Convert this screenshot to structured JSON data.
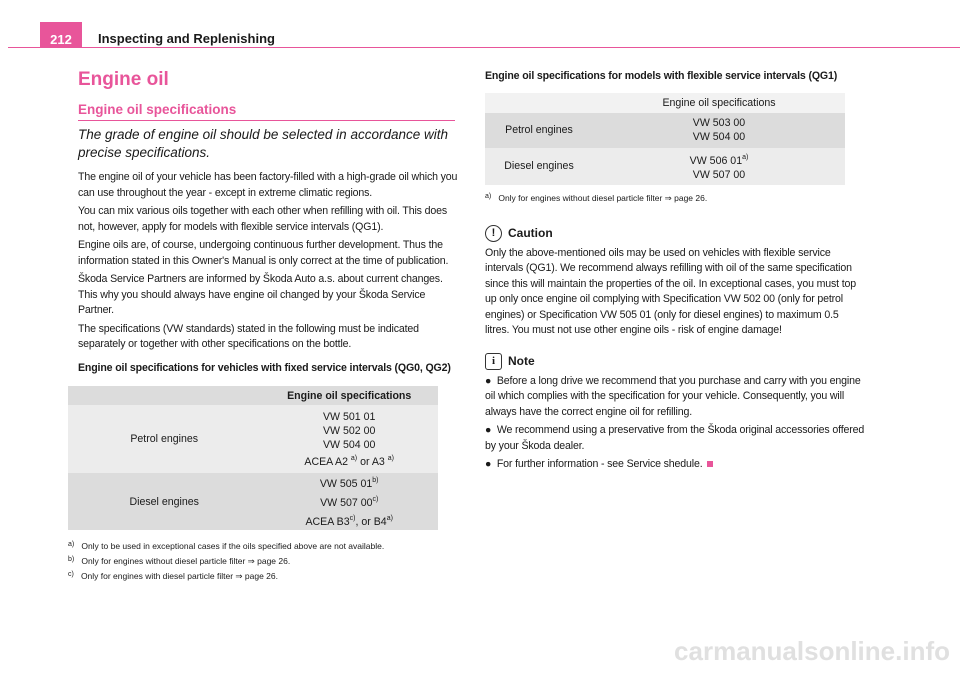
{
  "header": {
    "page_number": "212",
    "section": "Inspecting and Replenishing"
  },
  "title": "Engine oil",
  "subtitle": "Engine oil specifications",
  "lead": "The grade of engine oil should be selected in accordance with precise specifications.",
  "paragraphs": [
    "The engine oil of your vehicle has been factory-filled with a high-grade oil which you can use throughout the year - except in extreme climatic regions.",
    "You can mix various oils together with each other when refilling with oil. This does not, however, apply for models with flexible service intervals (QG1).",
    "Engine oils are, of course, undergoing continuous further development. Thus the information stated in this Owner's Manual is only correct at the time of publication.",
    "Škoda Service Partners are informed by Škoda Auto a.s. about current changes. This why you should always have engine oil changed by your Škoda Service Partner.",
    "The specifications (VW standards) stated in the following must be indicated separately or together with other specifications on the bottle."
  ],
  "table1": {
    "caption": "Engine oil specifications for vehicles with fixed service intervals (QG0, QG2)",
    "header": "Engine oil specifications",
    "petrol": {
      "label": "Petrol engines",
      "l1": "VW 501 01",
      "l2": "VW 502 00",
      "l3": "VW 504 00",
      "l4a": "ACEA A2 ",
      "l4s1": "a)",
      "l4b": " or A3 ",
      "l4s2": "a)"
    },
    "diesel": {
      "label": "Diesel engines",
      "l1": "VW 505 01",
      "l1s": "b)",
      "l2": "VW 507 00",
      "l2s": "c)",
      "l3a": "ACEA B3",
      "l3s1": "c)",
      "l3b": ", or B4",
      "l3s2": "a)"
    },
    "footnotes": [
      {
        "mark": "a)",
        "text": "Only to be used in exceptional cases if the oils specified above are not available."
      },
      {
        "mark": "b)",
        "text": "Only for engines without diesel particle filter ⇒ page 26."
      },
      {
        "mark": "c)",
        "text": "Only for engines with diesel particle filter ⇒ page 26."
      }
    ]
  },
  "table2": {
    "caption": "Engine oil specifications for models with flexible service intervals (QG1)",
    "header": "Engine oil specifications",
    "petrol": {
      "label": "Petrol engines",
      "l1": "VW 503 00",
      "l2": "VW 504 00"
    },
    "diesel": {
      "label": "Diesel engines",
      "l1": "VW 506 01",
      "l1s": "a)",
      "l2": "VW 507 00"
    },
    "footnote": {
      "mark": "a)",
      "text": "Only for engines without diesel particle filter ⇒ page 26."
    }
  },
  "caution": {
    "title": "Caution",
    "text": "Only the above-mentioned oils may be used on vehicles with flexible service intervals (QG1). We recommend always refilling with oil of the same specification since this will maintain the properties of the oil. In exceptional cases, you must top up only once engine oil complying with Specification VW 502 00 (only for petrol engines) or Specification VW 505 01 (only for diesel engines) to maximum 0.5 litres. You must not use other engine oils - risk of engine damage!"
  },
  "note": {
    "title": "Note",
    "bullets": [
      "Before a long drive we recommend that you purchase and carry with you engine oil which complies with the specification for your vehicle. Consequently, you will always have the correct engine oil for refilling.",
      "We recommend using a preservative from the Škoda original accessories offered by your Škoda dealer.",
      "For further information - see Service shedule."
    ]
  },
  "watermark": "carmanualsonline.info",
  "colors": {
    "accent": "#e8559a",
    "row_dark": "#dcdcdc",
    "row_light": "#ececec"
  }
}
